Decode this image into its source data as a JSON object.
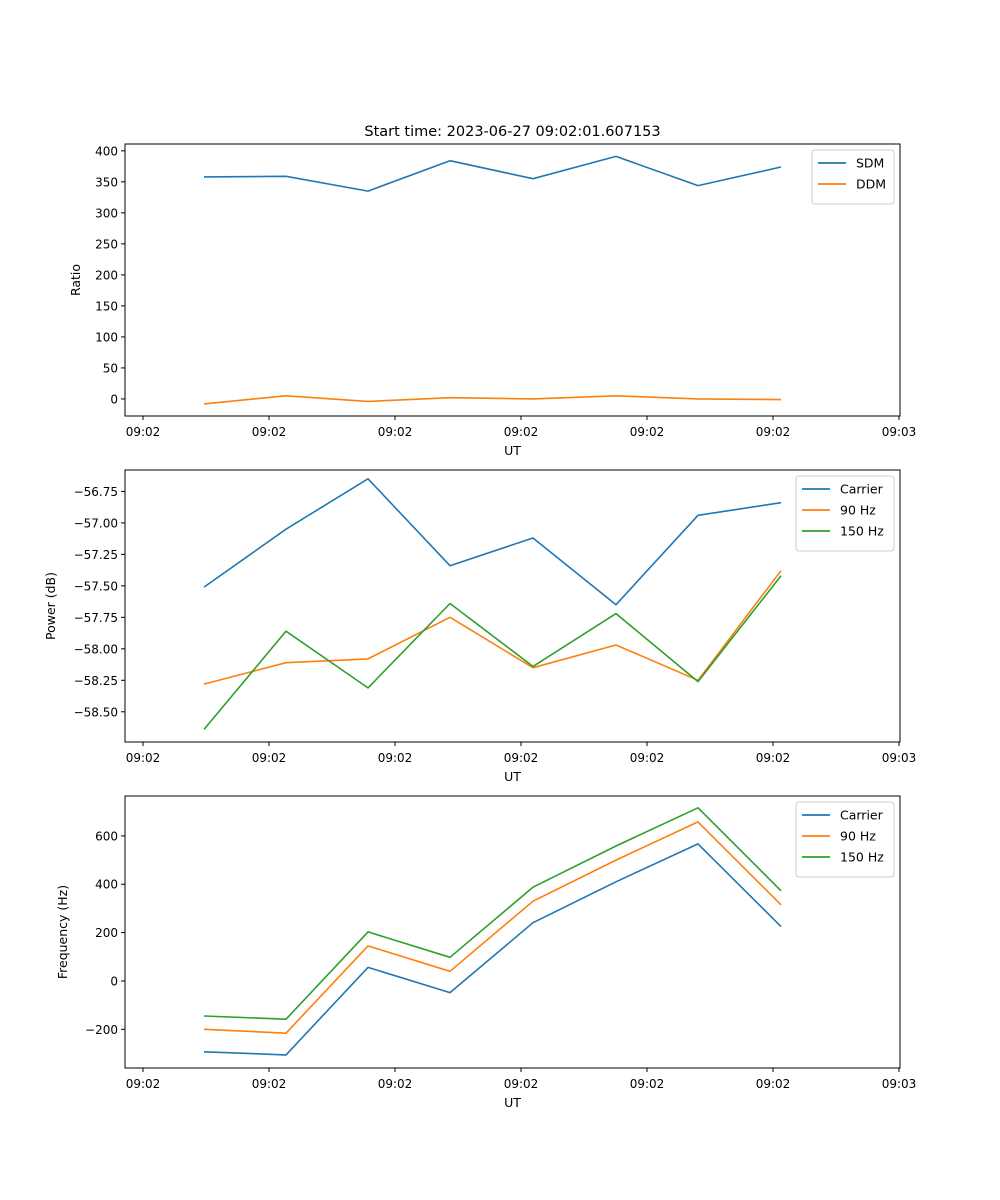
{
  "figure_title": "Start time: 2023-06-27 09:02:01.607153",
  "x_tick_labels": [
    "09:02",
    "09:02",
    "09:02",
    "09:02",
    "09:02",
    "09:02",
    "09:03"
  ],
  "chart_data": [
    {
      "type": "line",
      "title": "Start time: 2023-06-27 09:02:01.607153",
      "xlabel": "UT",
      "ylabel": "Ratio",
      "ylim": [
        -27.5,
        411
      ],
      "yticks": [
        0,
        50,
        100,
        150,
        200,
        250,
        300,
        350,
        400
      ],
      "ytick_labels": [
        "0",
        "50",
        "100",
        "150",
        "200",
        "250",
        "300",
        "350",
        "400"
      ],
      "xtick_labels": [
        "09:02",
        "09:02",
        "09:02",
        "09:02",
        "09:02",
        "09:02",
        "09:03"
      ],
      "grid": false,
      "legend": "upper right",
      "series": [
        {
          "name": "SDM",
          "color": "#1f77b4",
          "values": [
            358,
            359,
            335,
            384,
            355,
            391,
            344,
            374
          ]
        },
        {
          "name": "DDM",
          "color": "#ff7f0e",
          "values": [
            -8,
            5,
            -4,
            2,
            0,
            5,
            0,
            -1
          ]
        }
      ]
    },
    {
      "type": "line",
      "xlabel": "UT",
      "ylabel": "Power (dB)",
      "ylim": [
        -58.74,
        -56.58
      ],
      "yticks": [
        -58.5,
        -58.25,
        -58.0,
        -57.75,
        -57.5,
        -57.25,
        -57.0,
        -56.75
      ],
      "ytick_labels": [
        "−58.50",
        "−58.25",
        "−58.00",
        "−57.75",
        "−57.50",
        "−57.25",
        "−57.00",
        "−56.75"
      ],
      "xtick_labels": [
        "09:02",
        "09:02",
        "09:02",
        "09:02",
        "09:02",
        "09:02",
        "09:03"
      ],
      "grid": false,
      "legend": "upper right",
      "series": [
        {
          "name": "Carrier",
          "color": "#1f77b4",
          "values": [
            -57.51,
            -57.05,
            -56.65,
            -57.34,
            -57.12,
            -57.65,
            -56.94,
            -56.84
          ]
        },
        {
          "name": "90 Hz",
          "color": "#ff7f0e",
          "values": [
            -58.28,
            -58.11,
            -58.08,
            -57.75,
            -58.15,
            -57.97,
            -58.25,
            -57.38
          ]
        },
        {
          "name": "150 Hz",
          "color": "#2ca02c",
          "values": [
            -58.64,
            -57.86,
            -58.31,
            -57.64,
            -58.14,
            -57.72,
            -58.26,
            -57.42
          ]
        }
      ]
    },
    {
      "type": "line",
      "xlabel": "UT",
      "ylabel": "Frequency (Hz)",
      "ylim": [
        -360,
        765
      ],
      "yticks": [
        -200,
        0,
        200,
        400,
        600
      ],
      "ytick_labels": [
        "−200",
        "0",
        "200",
        "400",
        "600"
      ],
      "xtick_labels": [
        "09:02",
        "09:02",
        "09:02",
        "09:02",
        "09:02",
        "09:02",
        "09:03"
      ],
      "grid": false,
      "legend": "upper right",
      "series": [
        {
          "name": "Carrier",
          "color": "#1f77b4",
          "values": [
            -293,
            -306,
            56,
            -48,
            241,
            410,
            567,
            225
          ]
        },
        {
          "name": "90 Hz",
          "color": "#ff7f0e",
          "values": [
            -200,
            -216,
            145,
            40,
            330,
            500,
            658,
            315
          ]
        },
        {
          "name": "150 Hz",
          "color": "#2ca02c",
          "values": [
            -145,
            -158,
            203,
            98,
            388,
            558,
            716,
            373
          ]
        }
      ]
    }
  ]
}
